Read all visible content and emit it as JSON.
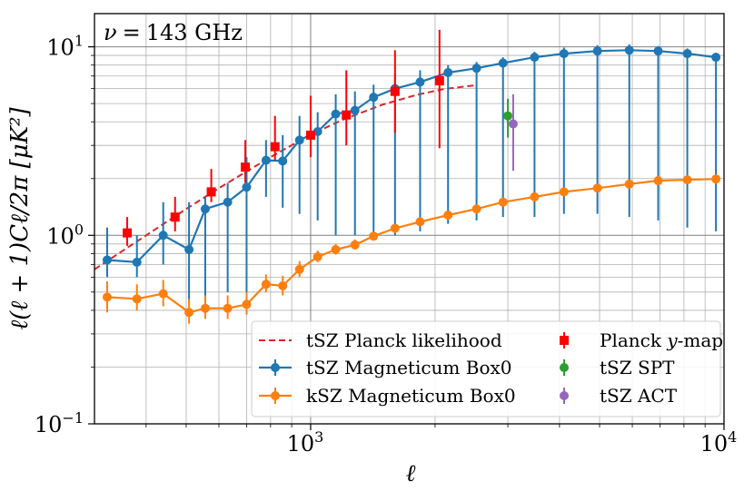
{
  "chart_data": {
    "type": "scatter",
    "annotation": {
      "symbol": "ν",
      "equals": "=",
      "value": "143 GHz"
    },
    "xlabel": "ℓ",
    "ylabel": "ℓ(ℓ + 1)Cℓ/2π [μK²]",
    "xscale": "log",
    "yscale": "log",
    "xlim": [
      300,
      10000
    ],
    "ylim": [
      0.1,
      15
    ],
    "grid": true,
    "legend_position": "lower-right",
    "x_ticks": [
      {
        "base": "10",
        "exp": "3",
        "value": 1000
      },
      {
        "base": "10",
        "exp": "4",
        "value": 10000
      }
    ],
    "y_ticks": [
      {
        "base": "10",
        "exp": "−1",
        "value": 0.1
      },
      {
        "base": "10",
        "exp": "0",
        "value": 1
      },
      {
        "base": "10",
        "exp": "1",
        "value": 10
      }
    ],
    "series": [
      {
        "name": "tSZ Planck likelihood",
        "style": "dashed-line",
        "color": "#d62728",
        "x": [
          300,
          400,
          500,
          600,
          800,
          1000,
          1200,
          1500,
          1800,
          2100,
          2500
        ],
        "y": [
          0.66,
          1.0,
          1.38,
          1.78,
          2.6,
          3.42,
          4.12,
          4.95,
          5.55,
          5.97,
          6.25
        ]
      },
      {
        "name": "tSZ Magneticum Box0",
        "style": "line-errorbar",
        "color": "#1f77b4",
        "x": [
          322,
          380,
          440,
          508,
          556,
          630,
          700,
          780,
          856,
          940,
          1040,
          1150,
          1280,
          1420,
          1600,
          1840,
          2150,
          2520,
          2920,
          3480,
          4100,
          4940,
          5900,
          6930,
          8150,
          9560
        ],
        "y": [
          0.74,
          0.72,
          1.0,
          0.84,
          1.38,
          1.5,
          1.8,
          2.5,
          2.48,
          3.2,
          3.55,
          4.4,
          4.6,
          5.4,
          6.0,
          6.5,
          7.3,
          7.7,
          8.2,
          8.8,
          9.2,
          9.5,
          9.6,
          9.5,
          9.2,
          8.8
        ],
        "yerr_low": [
          0.6,
          0.6,
          0.7,
          0.45,
          0.4,
          0.5,
          0.5,
          1.6,
          1.4,
          1.3,
          1.2,
          1.0,
          1.0,
          1.0,
          1.0,
          1.05,
          1.15,
          1.2,
          1.25,
          1.25,
          1.3,
          1.3,
          1.25,
          1.2,
          1.1,
          1.05
        ],
        "yerr_high": [
          1.1,
          1.0,
          1.5,
          1.5,
          1.6,
          1.9,
          2.6,
          3.2,
          3.4,
          4.3,
          4.5,
          5.6,
          5.8,
          6.3,
          7.2,
          7.5,
          8.0,
          8.3,
          8.8,
          9.4,
          9.9,
          10.2,
          10.3,
          10.1,
          9.8,
          9.3
        ]
      },
      {
        "name": "kSZ Magneticum Box0",
        "style": "line-errorbar",
        "color": "#ff7f0e",
        "x": [
          322,
          380,
          440,
          508,
          556,
          630,
          700,
          780,
          856,
          940,
          1040,
          1150,
          1280,
          1420,
          1600,
          1840,
          2150,
          2520,
          2920,
          3480,
          4100,
          4940,
          5900,
          6930,
          8150,
          9560
        ],
        "y": [
          0.47,
          0.46,
          0.49,
          0.39,
          0.41,
          0.41,
          0.43,
          0.55,
          0.54,
          0.66,
          0.77,
          0.84,
          0.89,
          0.99,
          1.09,
          1.18,
          1.28,
          1.38,
          1.5,
          1.6,
          1.7,
          1.78,
          1.87,
          1.95,
          1.97,
          1.99
        ],
        "yerr_low": [
          0.39,
          0.4,
          0.42,
          0.34,
          0.36,
          0.36,
          0.38,
          0.5,
          0.48,
          0.6,
          0.72,
          0.79,
          0.84,
          0.95,
          1.05,
          1.14,
          1.24,
          1.34,
          1.46,
          1.56,
          1.66,
          1.74,
          1.83,
          1.91,
          1.93,
          1.95
        ],
        "yerr_high": [
          0.57,
          0.55,
          0.58,
          0.46,
          0.48,
          0.48,
          0.5,
          0.62,
          0.61,
          0.73,
          0.83,
          0.9,
          0.95,
          1.04,
          1.14,
          1.23,
          1.33,
          1.43,
          1.55,
          1.65,
          1.75,
          1.83,
          1.92,
          2.0,
          2.02,
          2.04
        ]
      },
      {
        "name": "Planck y-map",
        "style": "square-errorbar",
        "color": "#ff0000",
        "x": [
          360,
          470,
          575,
          695,
          820,
          1000,
          1220,
          1600,
          2050
        ],
        "y": [
          1.03,
          1.25,
          1.7,
          2.3,
          2.95,
          3.4,
          4.35,
          5.8,
          6.6
        ],
        "yerr_low": [
          0.88,
          1.05,
          1.5,
          1.9,
          2.5,
          2.6,
          3.0,
          3.5,
          2.9
        ],
        "yerr_high": [
          1.25,
          1.6,
          2.25,
          3.2,
          4.3,
          5.5,
          7.5,
          9.6,
          12.3
        ]
      },
      {
        "name": "tSZ SPT",
        "style": "point-errorbar",
        "color": "#2ca02c",
        "x": [
          3000
        ],
        "y": [
          4.3
        ],
        "yerr_low": [
          3.3
        ],
        "yerr_high": [
          5.3
        ]
      },
      {
        "name": "tSZ ACT",
        "style": "point-errorbar",
        "color": "#9467bd",
        "x": [
          3090
        ],
        "y": [
          3.9
        ],
        "yerr_low": [
          2.2
        ],
        "yerr_high": [
          5.6
        ]
      }
    ],
    "legend": {
      "left": [
        {
          "label": "tSZ Planck likelihood",
          "series": 0
        },
        {
          "label": "tSZ Magneticum Box0",
          "series": 1
        },
        {
          "label": "kSZ Magneticum Box0",
          "series": 2
        }
      ],
      "right": [
        {
          "label_pre": "Planck ",
          "label_it": "y",
          "label_post": "-map",
          "series": 3
        },
        {
          "label": "tSZ SPT",
          "series": 4
        },
        {
          "label": "tSZ ACT",
          "series": 5
        }
      ]
    }
  }
}
